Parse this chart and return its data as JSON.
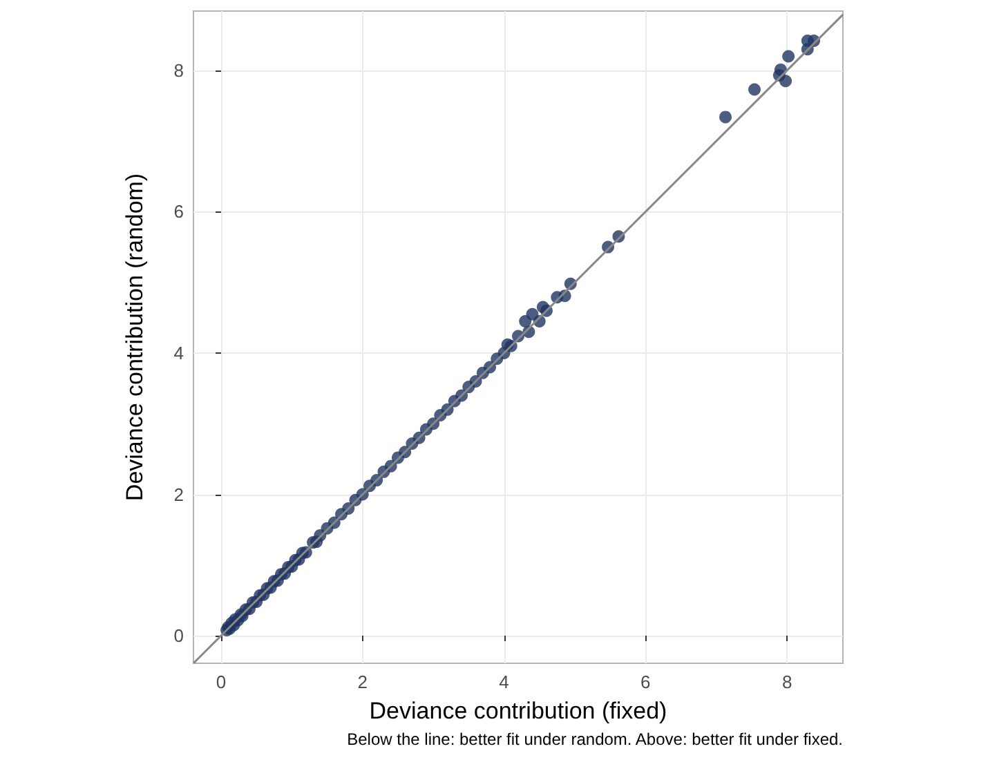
{
  "chart_data": {
    "type": "scatter",
    "xlabel": "Deviance contribution (fixed)",
    "ylabel": "Deviance contribution (random)",
    "annotations": [
      "Below the line: better fit under random. Above: better fit under fixed."
    ],
    "xlim": [
      -0.39,
      8.79
    ],
    "ylim": [
      -0.39,
      8.84
    ],
    "xticks": [
      0,
      2,
      4,
      6,
      8
    ],
    "yticks": [
      0,
      2,
      4,
      6,
      8
    ],
    "grid": true,
    "marker": "circle",
    "series": [
      {
        "color": "#1f3560",
        "x": [
          0.08,
          0.1,
          0.12,
          0.15,
          0.18,
          0.2,
          0.24,
          0.28,
          0.3,
          0.35,
          0.4,
          0.45,
          0.5,
          0.55,
          0.6,
          0.65,
          0.7,
          0.75,
          0.8,
          0.85,
          0.9,
          0.95,
          1.0,
          1.05,
          1.1,
          1.15,
          1.2,
          1.3,
          1.35,
          1.4,
          1.5,
          1.6,
          1.7,
          1.8,
          1.9,
          2.0,
          2.1,
          2.2,
          2.3,
          2.4,
          2.5,
          2.6,
          2.7,
          2.8,
          2.9,
          3.0,
          3.1,
          3.2,
          3.3,
          3.4,
          3.5,
          3.6,
          3.7,
          3.8,
          3.9,
          4.0,
          4.05,
          4.1,
          4.2,
          4.3,
          4.35,
          4.4,
          4.5,
          4.55,
          4.6,
          4.75,
          4.86,
          4.94,
          5.47,
          5.62,
          7.13,
          7.54,
          7.89,
          7.91,
          7.98,
          8.02,
          8.29,
          8.29,
          8.38
        ],
        "values": [
          0.08,
          0.12,
          0.1,
          0.18,
          0.15,
          0.23,
          0.22,
          0.3,
          0.28,
          0.37,
          0.38,
          0.47,
          0.48,
          0.57,
          0.58,
          0.67,
          0.68,
          0.77,
          0.78,
          0.87,
          0.88,
          0.97,
          0.98,
          1.07,
          1.08,
          1.17,
          1.18,
          1.32,
          1.33,
          1.42,
          1.52,
          1.6,
          1.72,
          1.8,
          1.92,
          2.0,
          2.12,
          2.2,
          2.32,
          2.4,
          2.52,
          2.6,
          2.72,
          2.8,
          2.92,
          3.0,
          3.12,
          3.2,
          3.32,
          3.4,
          3.52,
          3.6,
          3.72,
          3.8,
          3.92,
          4.0,
          4.12,
          4.1,
          4.24,
          4.45,
          4.3,
          4.55,
          4.45,
          4.65,
          4.6,
          4.79,
          4.81,
          4.98,
          5.5,
          5.65,
          7.34,
          7.73,
          7.93,
          8.01,
          7.85,
          8.2,
          8.3,
          8.42,
          8.42
        ]
      },
      {
        "type": "line",
        "color": "#888888",
        "marker": "none",
        "x": [
          -0.39,
          8.79
        ],
        "values": [
          -0.39,
          8.79
        ]
      }
    ]
  }
}
